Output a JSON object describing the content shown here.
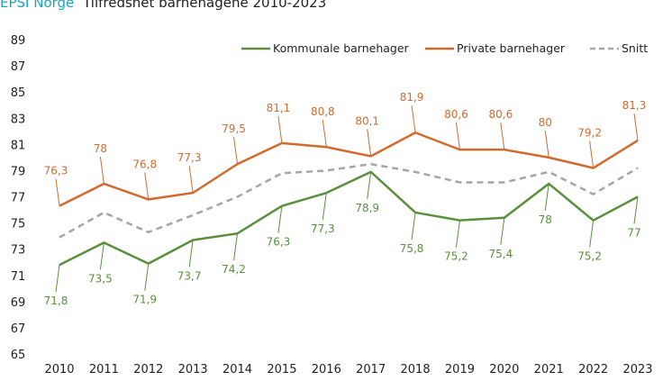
{
  "chart_data": {
    "type": "line",
    "title_brand": "EPSI Norge",
    "title": "Tilfredshet barnehagene 2010-2023",
    "categories": [
      "2010",
      "2011",
      "2012",
      "2013",
      "2014",
      "2015",
      "2016",
      "2017",
      "2018",
      "2019",
      "2020",
      "2021",
      "2022",
      "2023"
    ],
    "yticks": [
      "65",
      "67",
      "69",
      "71",
      "73",
      "75",
      "77",
      "79",
      "81",
      "83",
      "85",
      "87",
      "89"
    ],
    "ylim": [
      65,
      89
    ],
    "grid": false,
    "legend_position": "top-right",
    "series": [
      {
        "name": "Kommunale barnehager",
        "color": "#5a8f3c",
        "dashed": false,
        "labels": true,
        "label_pos": "below",
        "values": [
          71.8,
          73.5,
          71.9,
          73.7,
          74.2,
          76.3,
          77.3,
          78.9,
          75.8,
          75.2,
          75.4,
          78,
          75.2,
          77
        ],
        "value_labels": [
          "71,8",
          "73,5",
          "71,9",
          "73,7",
          "74,2",
          "76,3",
          "77,3",
          "78,9",
          "75,8",
          "75,2",
          "75,4",
          "78",
          "75,2",
          "77"
        ]
      },
      {
        "name": "Private barnehager",
        "color": "#d2692e",
        "dashed": false,
        "labels": true,
        "label_pos": "above",
        "values": [
          76.3,
          78,
          76.8,
          77.3,
          79.5,
          81.1,
          80.8,
          80.1,
          81.9,
          80.6,
          80.6,
          80,
          79.2,
          81.3
        ],
        "value_labels": [
          "76,3",
          "78",
          "76,8",
          "77,3",
          "79,5",
          "81,1",
          "80,8",
          "80,1",
          "81,9",
          "80,6",
          "80,6",
          "80",
          "79,2",
          "81,3"
        ]
      },
      {
        "name": "Snitt",
        "color": "#a6a6a6",
        "dashed": true,
        "labels": false,
        "values": [
          73.9,
          75.8,
          74.3,
          75.6,
          77.0,
          78.8,
          79.0,
          79.5,
          78.9,
          78.1,
          78.1,
          78.9,
          77.2,
          79.2
        ]
      }
    ]
  },
  "colors": {
    "brand": "#1aa3c4",
    "text": "#222222"
  }
}
